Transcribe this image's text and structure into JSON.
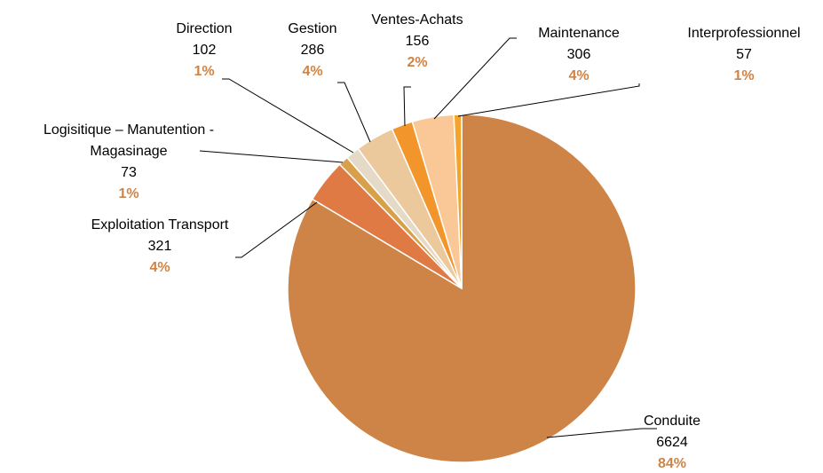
{
  "chart_data": {
    "type": "pie",
    "categories": [
      "Conduite",
      "Exploitation Transport",
      "Logisitique – Manutention - Magasinage",
      "Direction",
      "Gestion",
      "Ventes-Achats",
      "Maintenance",
      "Interprofessionnel"
    ],
    "values": [
      6624,
      321,
      73,
      102,
      286,
      156,
      306,
      57
    ],
    "percent_labels": [
      "84%",
      "4%",
      "1%",
      "1%",
      "4%",
      "2%",
      "4%",
      "1%"
    ],
    "colors": [
      "#cd8446",
      "#e07a45",
      "#d9a04a",
      "#e5d9c8",
      "#ebc99c",
      "#f2962b",
      "#f9c896",
      "#f4a42a"
    ],
    "start_angle": 90,
    "direction": "clockwise"
  }
}
